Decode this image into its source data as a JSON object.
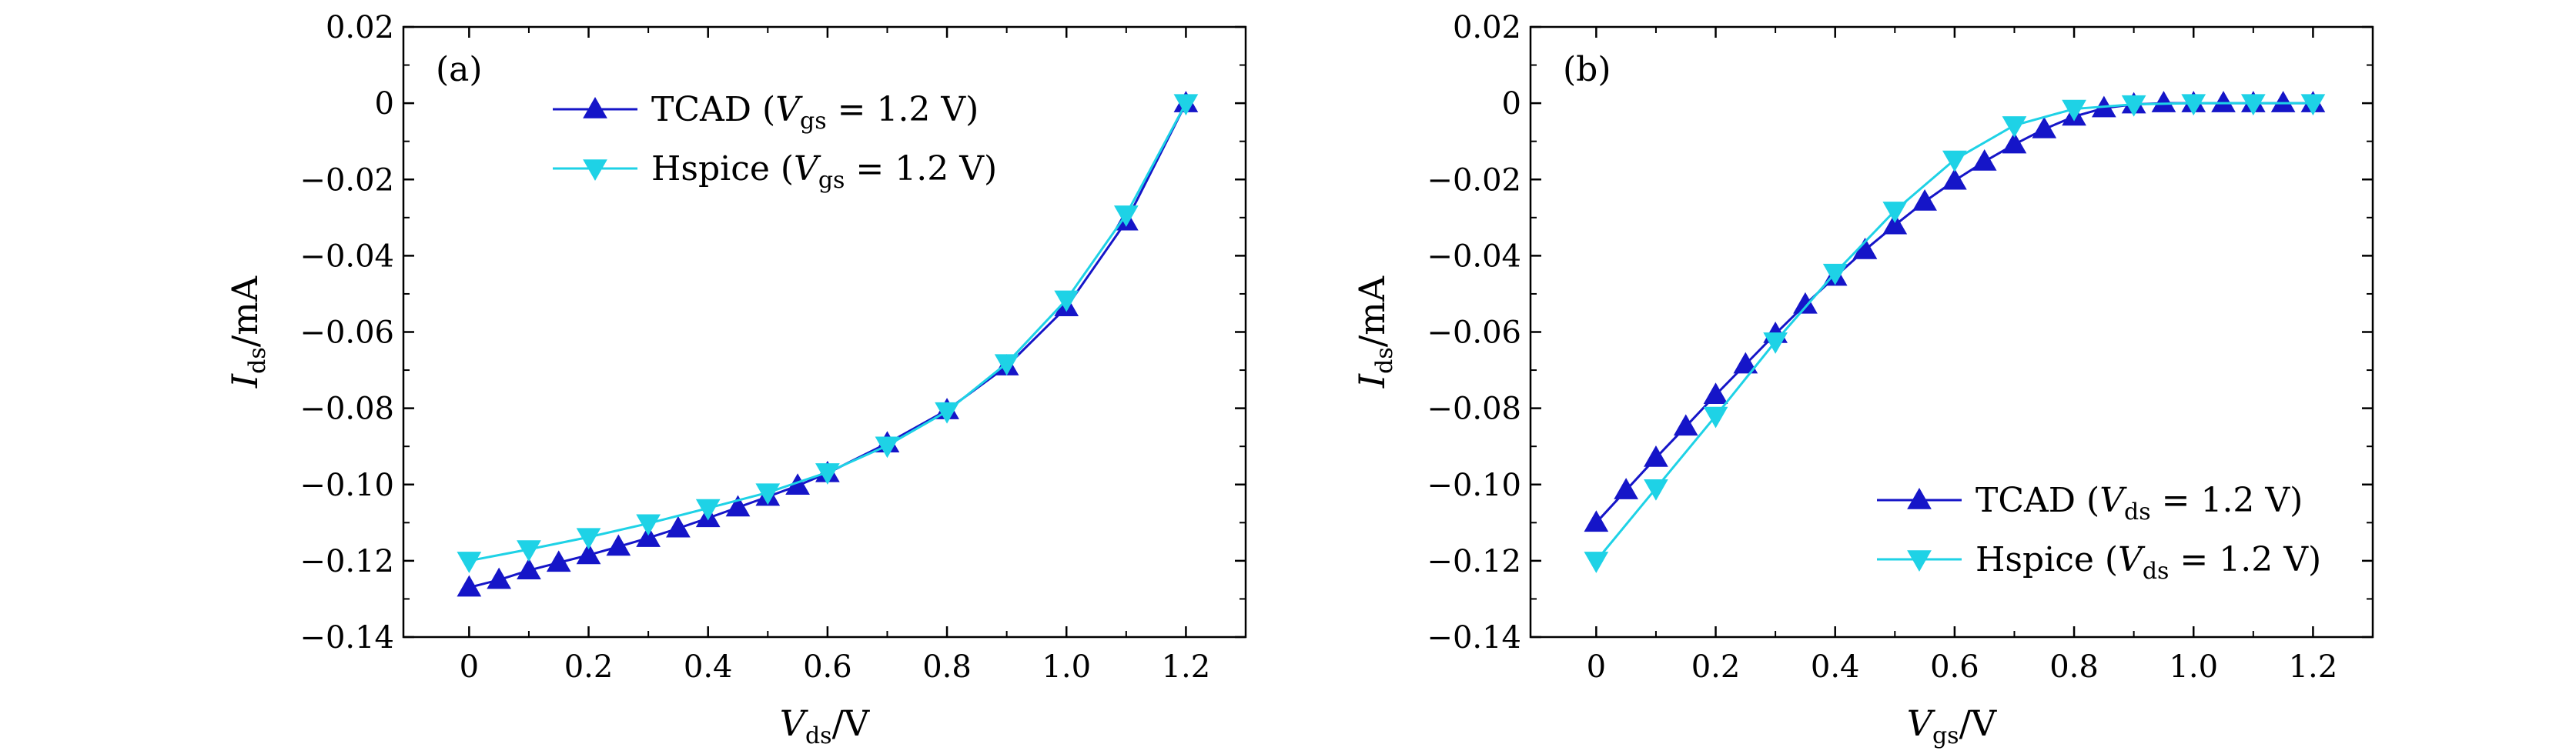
{
  "chart_data": [
    {
      "type": "line",
      "panel_label": "(a)",
      "xlabel": {
        "main": "V",
        "sub": "ds",
        "unit": "/V"
      },
      "ylabel": {
        "main": "I",
        "sub": "ds",
        "unit": "/mA"
      },
      "xlim": [
        -0.11,
        1.3
      ],
      "ylim": [
        -0.14,
        0.02
      ],
      "xticks": [
        0,
        0.2,
        0.4,
        0.6,
        0.8,
        1.0,
        1.2
      ],
      "xtick_labels": [
        "0",
        "0.2",
        "0.4",
        "0.6",
        "0.8",
        "1.0",
        "1.2"
      ],
      "yticks": [
        0.02,
        0,
        -0.02,
        -0.04,
        -0.06,
        -0.08,
        -0.1,
        -0.12,
        -0.14
      ],
      "ytick_labels": [
        "0.02",
        "0",
        "−0.02",
        "−0.04",
        "−0.06",
        "−0.08",
        "−0.10",
        "−0.12",
        "−0.14"
      ],
      "legend_position": "top-center",
      "series": [
        {
          "name": "TCAD",
          "legend_var": "V",
          "legend_sub": "gs",
          "legend_value": "= 1.2 V",
          "color": "#1515c8",
          "marker": "triangle-up",
          "x": [
            0,
            0.05,
            0.1,
            0.15,
            0.2,
            0.25,
            0.3,
            0.35,
            0.4,
            0.45,
            0.5,
            0.55,
            0.6,
            0.7,
            0.8,
            0.9,
            1.0,
            1.1,
            1.2
          ],
          "y": [
            -0.127,
            -0.125,
            -0.1225,
            -0.1205,
            -0.1185,
            -0.1163,
            -0.114,
            -0.1115,
            -0.1088,
            -0.106,
            -0.1032,
            -0.1003,
            -0.097,
            -0.0892,
            -0.0805,
            -0.069,
            -0.0535,
            -0.031,
            0.0
          ]
        },
        {
          "name": "Hspice",
          "legend_var": "V",
          "legend_sub": "gs",
          "legend_value": "= 1.2 V",
          "color": "#1ed2e6",
          "marker": "triangle-down",
          "x": [
            0,
            0.1,
            0.2,
            0.3,
            0.4,
            0.5,
            0.6,
            0.7,
            0.8,
            0.9,
            1.0,
            1.1,
            1.2
          ],
          "y": [
            -0.12,
            -0.117,
            -0.1138,
            -0.1102,
            -0.1062,
            -0.1021,
            -0.0968,
            -0.0898,
            -0.0808,
            -0.0682,
            -0.0515,
            -0.0292,
            0.0
          ]
        }
      ]
    },
    {
      "type": "line",
      "panel_label": "(b)",
      "xlabel": {
        "main": "V",
        "sub": "gs",
        "unit": "/V"
      },
      "ylabel": {
        "main": "I",
        "sub": "ds",
        "unit": "/mA"
      },
      "xlim": [
        -0.11,
        1.3
      ],
      "ylim": [
        -0.14,
        0.02
      ],
      "xticks": [
        0,
        0.2,
        0.4,
        0.6,
        0.8,
        1.0,
        1.2
      ],
      "xtick_labels": [
        "0",
        "0.2",
        "0.4",
        "0.6",
        "0.8",
        "1.0",
        "1.2"
      ],
      "yticks": [
        0.02,
        0,
        -0.02,
        -0.04,
        -0.06,
        -0.08,
        -0.1,
        -0.12,
        -0.14
      ],
      "ytick_labels": [
        "0.02",
        "0",
        "−0.02",
        "−0.04",
        "−0.06",
        "−0.08",
        "−0.10",
        "−0.12",
        "−0.14"
      ],
      "legend_position": "bottom-right",
      "series": [
        {
          "name": "TCAD",
          "legend_var": "V",
          "legend_sub": "ds",
          "legend_value": "= 1.2 V",
          "color": "#1515c8",
          "marker": "triangle-up",
          "x": [
            0,
            0.05,
            0.1,
            0.15,
            0.2,
            0.25,
            0.3,
            0.35,
            0.4,
            0.45,
            0.5,
            0.55,
            0.6,
            0.65,
            0.7,
            0.75,
            0.8,
            0.85,
            0.9,
            0.95,
            1.0,
            1.05,
            1.1,
            1.15,
            1.2
          ],
          "y": [
            -0.11,
            -0.1015,
            -0.093,
            -0.0848,
            -0.0765,
            -0.0685,
            -0.0605,
            -0.0528,
            -0.0455,
            -0.0385,
            -0.032,
            -0.0258,
            -0.0203,
            -0.0153,
            -0.0108,
            -0.0068,
            -0.0035,
            -0.0013,
            -0.0003,
            0.0,
            0.0,
            0.0,
            0.0,
            0.0,
            0.0
          ]
        },
        {
          "name": "Hspice",
          "legend_var": "V",
          "legend_sub": "ds",
          "legend_value": "= 1.2 V",
          "color": "#1ed2e6",
          "marker": "triangle-down",
          "x": [
            0,
            0.1,
            0.2,
            0.3,
            0.4,
            0.5,
            0.6,
            0.7,
            0.8,
            0.9,
            1.0,
            1.1,
            1.2
          ],
          "y": [
            -0.12,
            -0.101,
            -0.082,
            -0.0625,
            -0.0445,
            -0.0282,
            -0.0148,
            -0.0058,
            -0.0015,
            -0.0003,
            0.0,
            0.0,
            0.0
          ]
        }
      ]
    }
  ]
}
